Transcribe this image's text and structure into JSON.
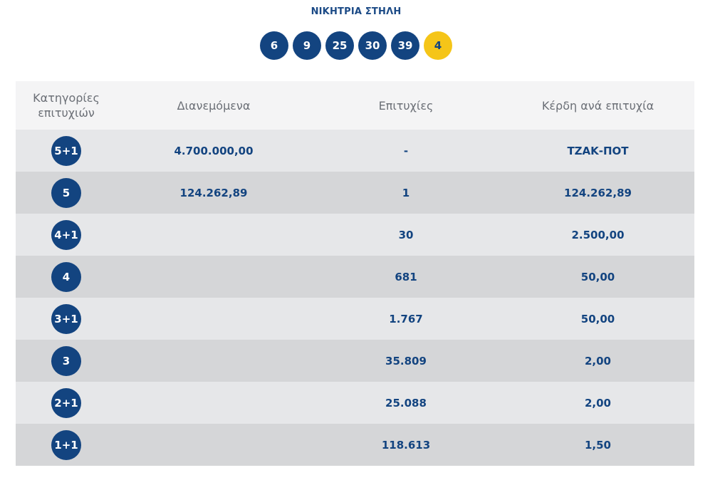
{
  "title": "ΝΙΚΗΤΡΙΑ ΣΤΗΛΗ",
  "numbers": [
    "6",
    "9",
    "25",
    "30",
    "39"
  ],
  "bonus": "4",
  "colors": {
    "primary": "#134480",
    "bonus": "#f5c518",
    "header_bg": "#f4f4f5",
    "row_light": "#e6e7e9",
    "row_dark": "#d5d6d8"
  },
  "table": {
    "headers": {
      "category_line1": "Κατηγορίες",
      "category_line2": "επιτυχιών",
      "distributed": "Διανεμόμενα",
      "winners": "Επιτυχίες",
      "prize": "Κέρδη ανά επιτυχία"
    },
    "rows": [
      {
        "category": "5+1",
        "distributed": "4.700.000,00",
        "winners": "-",
        "prize": "ΤΖΑΚ-ΠΟΤ"
      },
      {
        "category": "5",
        "distributed": "124.262,89",
        "winners": "1",
        "prize": "124.262,89"
      },
      {
        "category": "4+1",
        "distributed": "",
        "winners": "30",
        "prize": "2.500,00"
      },
      {
        "category": "4",
        "distributed": "",
        "winners": "681",
        "prize": "50,00"
      },
      {
        "category": "3+1",
        "distributed": "",
        "winners": "1.767",
        "prize": "50,00"
      },
      {
        "category": "3",
        "distributed": "",
        "winners": "35.809",
        "prize": "2,00"
      },
      {
        "category": "2+1",
        "distributed": "",
        "winners": "25.088",
        "prize": "2,00"
      },
      {
        "category": "1+1",
        "distributed": "",
        "winners": "118.613",
        "prize": "1,50"
      }
    ]
  }
}
